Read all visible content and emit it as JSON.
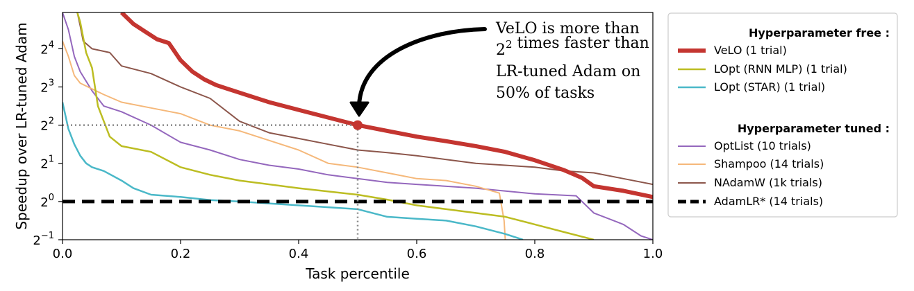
{
  "chart_data": {
    "type": "line",
    "xlabel": "Task percentile",
    "ylabel": "Speedup over LR-tuned Adam",
    "xlim": [
      0.0,
      1.0
    ],
    "ylim_log2": [
      -1,
      4.95
    ],
    "y_scale": "log2",
    "grid": false,
    "legend_placement": "outside-right",
    "xticks": [
      {
        "value": 0.0,
        "label": "0.0"
      },
      {
        "value": 0.2,
        "label": "0.2"
      },
      {
        "value": 0.4,
        "label": "0.4"
      },
      {
        "value": 0.6,
        "label": "0.6"
      },
      {
        "value": 0.8,
        "label": "0.8"
      },
      {
        "value": 1.0,
        "label": "1.0"
      }
    ],
    "yticks": [
      {
        "exp": -1,
        "base": "2",
        "sup": "−1"
      },
      {
        "exp": 0,
        "base": "2",
        "sup": "0"
      },
      {
        "exp": 1,
        "base": "2",
        "sup": "1"
      },
      {
        "exp": 2,
        "base": "2",
        "sup": "2"
      },
      {
        "exp": 3,
        "base": "2",
        "sup": "3"
      },
      {
        "exp": 4,
        "base": "2",
        "sup": "4"
      }
    ],
    "legend_groups": [
      {
        "heading": "Hyperparameter free :",
        "entries": [
          "VeLO (1 trial)",
          "LOpt (RNN MLP) (1 trial)",
          "LOpt (STAR) (1 trial)"
        ]
      },
      {
        "heading": "Hyperparameter tuned :",
        "entries": [
          "OptList (10 trials)",
          "Shampoo (14 trials)",
          "NAdamW (1k trials)",
          "AdamLR* (14 trials)"
        ]
      }
    ],
    "series": [
      {
        "name": "VeLO (1 trial)",
        "color": "#c43530",
        "width": 6,
        "x": [
          0.1,
          0.12,
          0.14,
          0.16,
          0.18,
          0.2,
          0.22,
          0.24,
          0.26,
          0.28,
          0.3,
          0.35,
          0.4,
          0.45,
          0.5,
          0.55,
          0.6,
          0.65,
          0.7,
          0.75,
          0.8,
          0.85,
          0.88,
          0.9,
          0.95,
          1.0
        ],
        "y": [
          4.95,
          4.65,
          4.45,
          4.25,
          4.15,
          3.7,
          3.4,
          3.2,
          3.05,
          2.95,
          2.85,
          2.6,
          2.4,
          2.2,
          2.0,
          1.85,
          1.7,
          1.58,
          1.45,
          1.3,
          1.08,
          0.82,
          0.62,
          0.4,
          0.28,
          0.12
        ]
      },
      {
        "name": "LOpt (RNN MLP) (1 trial)",
        "color": "#bcbd22",
        "width": 2.5,
        "x": [
          0.025,
          0.03,
          0.04,
          0.05,
          0.06,
          0.08,
          0.1,
          0.15,
          0.2,
          0.25,
          0.3,
          0.4,
          0.5,
          0.55,
          0.6,
          0.65,
          0.7,
          0.75,
          0.8,
          0.85,
          0.9
        ],
        "y": [
          4.95,
          4.7,
          3.9,
          3.5,
          2.5,
          1.7,
          1.45,
          1.3,
          0.9,
          0.7,
          0.55,
          0.35,
          0.18,
          0.05,
          -0.1,
          -0.2,
          -0.3,
          -0.4,
          -0.6,
          -0.8,
          -1.0
        ]
      },
      {
        "name": "LOpt (STAR) (1 trial)",
        "color": "#4ab8c8",
        "width": 2.5,
        "x": [
          0.0,
          0.01,
          0.02,
          0.03,
          0.04,
          0.05,
          0.07,
          0.1,
          0.12,
          0.15,
          0.2,
          0.25,
          0.3,
          0.4,
          0.5,
          0.55,
          0.6,
          0.65,
          0.7,
          0.75,
          0.78
        ],
        "y": [
          2.6,
          1.9,
          1.5,
          1.2,
          1.0,
          0.9,
          0.8,
          0.55,
          0.35,
          0.18,
          0.12,
          0.04,
          0.0,
          -0.1,
          -0.2,
          -0.4,
          -0.45,
          -0.5,
          -0.65,
          -0.85,
          -1.0
        ]
      },
      {
        "name": "OptList (10 trials)",
        "color": "#9467bd",
        "width": 2,
        "x": [
          0.0,
          0.01,
          0.02,
          0.03,
          0.05,
          0.07,
          0.1,
          0.15,
          0.2,
          0.25,
          0.3,
          0.35,
          0.4,
          0.45,
          0.5,
          0.55,
          0.6,
          0.7,
          0.8,
          0.87,
          0.9,
          0.95,
          0.98,
          1.0
        ],
        "y": [
          4.95,
          4.5,
          3.8,
          3.4,
          2.9,
          2.5,
          2.35,
          2.0,
          1.55,
          1.35,
          1.1,
          0.95,
          0.85,
          0.7,
          0.6,
          0.5,
          0.45,
          0.35,
          0.2,
          0.15,
          -0.3,
          -0.6,
          -0.9,
          -1.0
        ]
      },
      {
        "name": "Shampoo (14 trials)",
        "color": "#f5b87a",
        "width": 2,
        "x": [
          0.0,
          0.01,
          0.02,
          0.03,
          0.05,
          0.07,
          0.1,
          0.15,
          0.2,
          0.25,
          0.3,
          0.35,
          0.4,
          0.45,
          0.5,
          0.55,
          0.6,
          0.65,
          0.7,
          0.74,
          0.748,
          0.75
        ],
        "y": [
          4.2,
          3.8,
          3.3,
          3.1,
          2.95,
          2.8,
          2.6,
          2.45,
          2.3,
          2.0,
          1.85,
          1.6,
          1.35,
          1.0,
          0.9,
          0.75,
          0.6,
          0.55,
          0.4,
          0.22,
          -0.5,
          -1.0
        ]
      },
      {
        "name": "NAdamW (1k trials)",
        "color": "#8c564b",
        "width": 2,
        "x": [
          0.025,
          0.03,
          0.035,
          0.05,
          0.08,
          0.1,
          0.15,
          0.2,
          0.25,
          0.3,
          0.35,
          0.4,
          0.45,
          0.5,
          0.55,
          0.6,
          0.65,
          0.7,
          0.75,
          0.8,
          0.85,
          0.9,
          0.95,
          1.0
        ],
        "y": [
          4.95,
          4.6,
          4.2,
          4.0,
          3.9,
          3.55,
          3.35,
          3.0,
          2.7,
          2.1,
          1.8,
          1.65,
          1.5,
          1.35,
          1.28,
          1.2,
          1.1,
          1.0,
          0.95,
          0.9,
          0.8,
          0.75,
          0.6,
          0.45
        ]
      },
      {
        "name": "AdamLR* (14 trials)",
        "color": "#000000",
        "width": 5,
        "dash": "18 10",
        "x": [
          0.0,
          1.0
        ],
        "y": [
          0.0,
          0.0
        ]
      }
    ],
    "annotations": [
      {
        "lines": [
          {
            "parts": [
              {
                "text": "VeLO is more than"
              }
            ]
          },
          {
            "parts": [
              {
                "text": "2"
              },
              {
                "text": "2",
                "sup": true
              },
              {
                "text": " times faster than"
              }
            ]
          },
          {
            "parts": [
              {
                "text": "LR-tuned Adam on"
              }
            ]
          },
          {
            "parts": [
              {
                "text": "50% of tasks"
              }
            ]
          }
        ],
        "point_x": 0.5,
        "point_y_log2": 2,
        "point_color": "#c43530"
      }
    ]
  }
}
